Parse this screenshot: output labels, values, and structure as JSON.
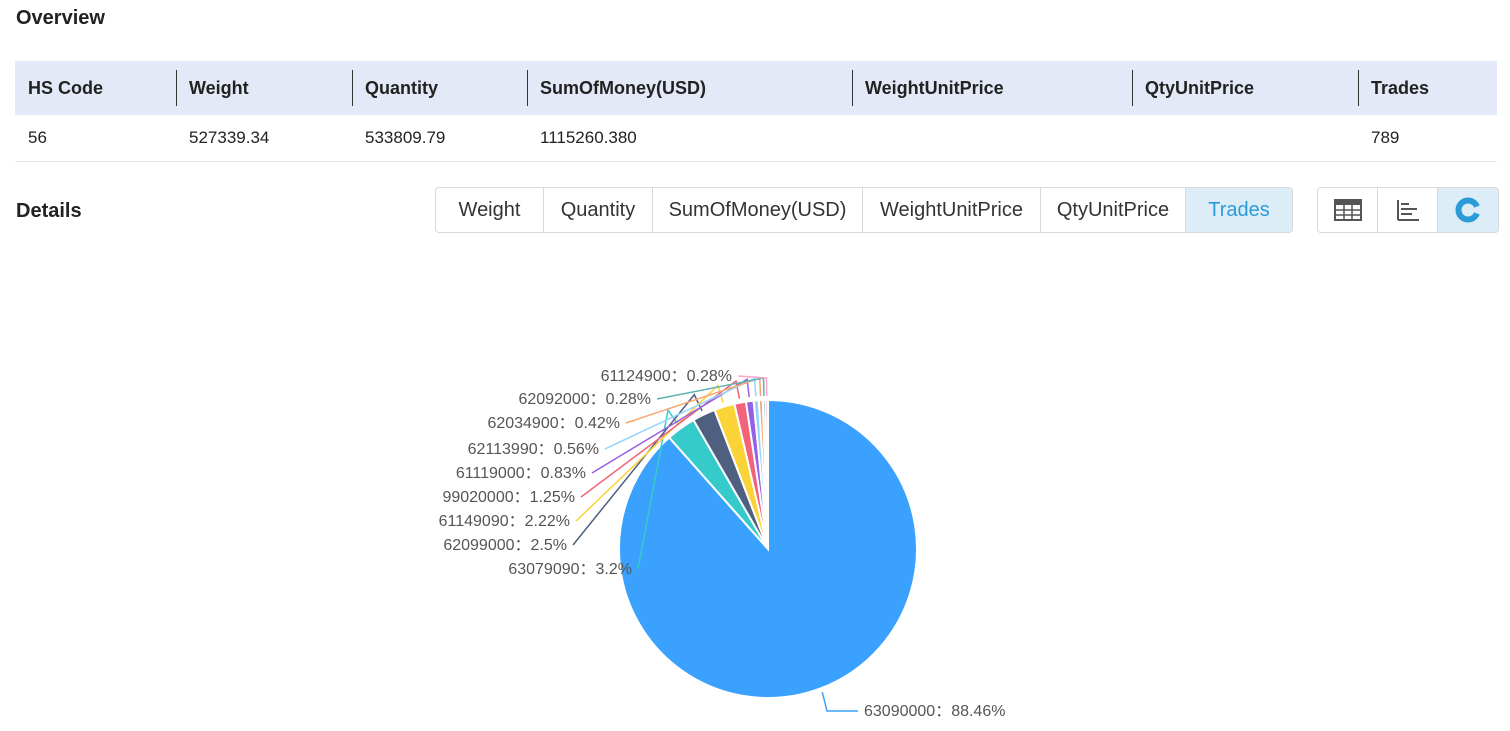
{
  "overview": {
    "title": "Overview",
    "columns": [
      "HS Code",
      "Weight",
      "Quantity",
      "SumOfMoney(USD)",
      "WeightUnitPrice",
      "QtyUnitPrice",
      "Trades"
    ],
    "row": [
      "56",
      "527339.34",
      "533809.79",
      "1115260.380",
      "",
      "",
      "789"
    ]
  },
  "details": {
    "title": "Details",
    "metric_tabs": [
      {
        "label": "Weight"
      },
      {
        "label": "Quantity"
      },
      {
        "label": "SumOfMoney(USD)"
      },
      {
        "label": "WeightUnitPrice"
      },
      {
        "label": "QtyUnitPrice"
      },
      {
        "label": "Trades"
      }
    ],
    "active_metric": "Trades",
    "view_toggles": [
      {
        "icon": "table-icon"
      },
      {
        "icon": "bar-chart-icon"
      },
      {
        "icon": "pie-chart-icon"
      }
    ],
    "active_view": "pie-chart-icon",
    "accent_color": "#2b9bd8"
  },
  "chart_data": {
    "type": "pie",
    "slices": [
      {
        "label": "63090000",
        "percent": 88.46,
        "color": "#3ba1ff",
        "text": "63090000：88.46%"
      },
      {
        "label": "63079090",
        "percent": 3.2,
        "color": "#36cbcb",
        "text": "63079090：3.2%"
      },
      {
        "label": "62099000",
        "percent": 2.5,
        "color": "#4e5f7f",
        "text": "62099000：2.5%"
      },
      {
        "label": "61149090",
        "percent": 2.22,
        "color": "#fad337",
        "text": "61149090：2.22%"
      },
      {
        "label": "99020000",
        "percent": 1.25,
        "color": "#f2637b",
        "text": "99020000：1.25%"
      },
      {
        "label": "61119000",
        "percent": 0.83,
        "color": "#975fe4",
        "text": "61119000：0.83%"
      },
      {
        "label": "62113990",
        "percent": 0.56,
        "color": "#91d5ff",
        "text": "62113990：0.56%"
      },
      {
        "label": "62034900",
        "percent": 0.42,
        "color": "#f6a56c",
        "text": "62034900：0.42%"
      },
      {
        "label": "62092000",
        "percent": 0.28,
        "color": "#5fb4b3",
        "text": "62092000：0.28%"
      },
      {
        "label": "61124900",
        "percent": 0.28,
        "color": "#f7a8c8",
        "text": "61124900：0.28%"
      }
    ]
  }
}
